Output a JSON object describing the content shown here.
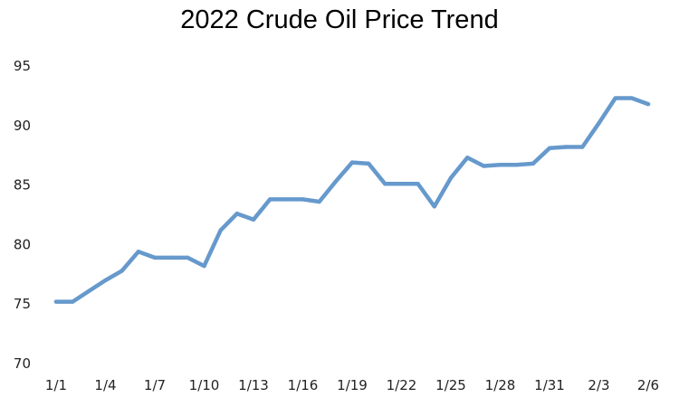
{
  "chart_data": {
    "type": "line",
    "title": "2022 Crude Oil Price Trend",
    "xlabel": "",
    "ylabel": "",
    "ylim": [
      70,
      95
    ],
    "yticks": [
      70,
      75,
      80,
      85,
      90,
      95
    ],
    "grid": false,
    "legend": "none",
    "x": [
      "1/1",
      "1/2",
      "1/3",
      "1/4",
      "1/5",
      "1/6",
      "1/7",
      "1/8",
      "1/9",
      "1/10",
      "1/11",
      "1/12",
      "1/13",
      "1/14",
      "1/15",
      "1/16",
      "1/17",
      "1/18",
      "1/19",
      "1/20",
      "1/21",
      "1/22",
      "1/23",
      "1/24",
      "1/25",
      "1/26",
      "1/27",
      "1/28",
      "1/29",
      "1/30",
      "1/31",
      "2/1",
      "2/2",
      "2/3",
      "2/4",
      "2/5",
      "2/6"
    ],
    "xtick_labels": [
      "1/1",
      "1/4",
      "1/7",
      "1/10",
      "1/13",
      "1/16",
      "1/19",
      "1/22",
      "1/25",
      "1/28",
      "1/31",
      "2/3",
      "2/6"
    ],
    "series": [
      {
        "name": "",
        "color": "#6699cc",
        "values": [
          75.2,
          75.2,
          76.1,
          77.0,
          77.8,
          79.4,
          78.9,
          78.9,
          78.9,
          78.2,
          81.2,
          82.6,
          82.1,
          83.8,
          83.8,
          83.8,
          83.6,
          85.3,
          86.9,
          86.8,
          85.1,
          85.1,
          85.1,
          83.2,
          85.6,
          87.3,
          86.6,
          86.7,
          86.7,
          86.8,
          88.1,
          88.2,
          88.2,
          90.2,
          92.3,
          92.3,
          91.8
        ]
      }
    ]
  }
}
